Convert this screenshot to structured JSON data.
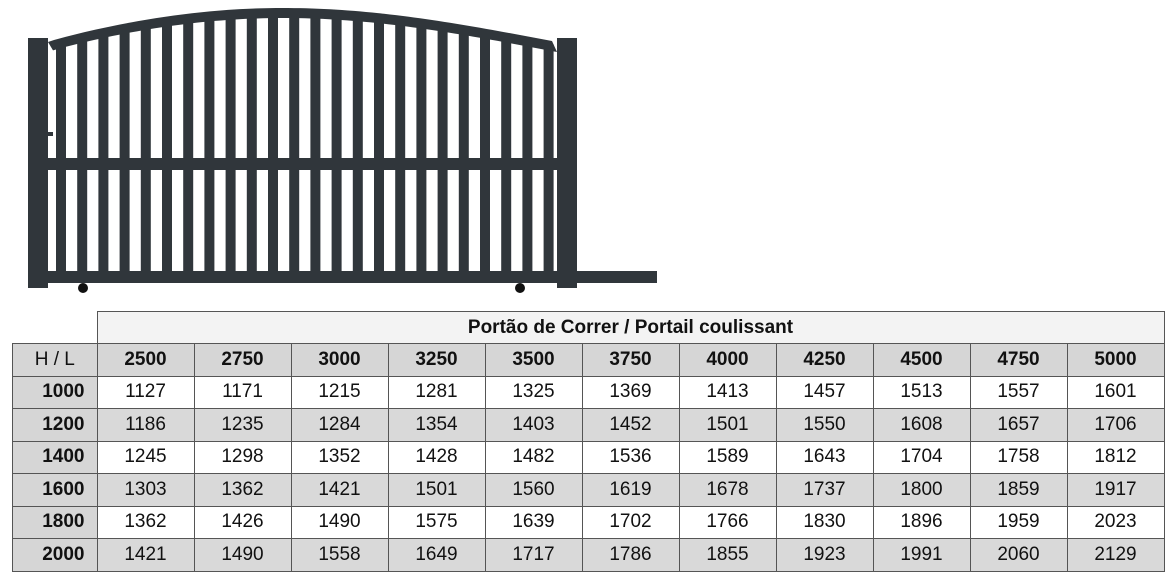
{
  "image": {
    "subject": "sliding gate",
    "color": "#30363b"
  },
  "table": {
    "title": "Portão de Correr / Portail coulissant",
    "corner_label": "H  /  L",
    "widths": [
      "2500",
      "2750",
      "3000",
      "3250",
      "3500",
      "3750",
      "4000",
      "4250",
      "4500",
      "4750",
      "5000"
    ],
    "rows": [
      {
        "height": "1000",
        "values": [
          "1127",
          "1171",
          "1215",
          "1281",
          "1325",
          "1369",
          "1413",
          "1457",
          "1513",
          "1557",
          "1601"
        ]
      },
      {
        "height": "1200",
        "values": [
          "1186",
          "1235",
          "1284",
          "1354",
          "1403",
          "1452",
          "1501",
          "1550",
          "1608",
          "1657",
          "1706"
        ]
      },
      {
        "height": "1400",
        "values": [
          "1245",
          "1298",
          "1352",
          "1428",
          "1482",
          "1536",
          "1589",
          "1643",
          "1704",
          "1758",
          "1812"
        ]
      },
      {
        "height": "1600",
        "values": [
          "1303",
          "1362",
          "1421",
          "1501",
          "1560",
          "1619",
          "1678",
          "1737",
          "1800",
          "1859",
          "1917"
        ]
      },
      {
        "height": "1800",
        "values": [
          "1362",
          "1426",
          "1490",
          "1575",
          "1639",
          "1702",
          "1766",
          "1830",
          "1896",
          "1959",
          "2023"
        ]
      },
      {
        "height": "2000",
        "values": [
          "1421",
          "1490",
          "1558",
          "1649",
          "1717",
          "1786",
          "1855",
          "1923",
          "1991",
          "2060",
          "2129"
        ]
      }
    ]
  }
}
